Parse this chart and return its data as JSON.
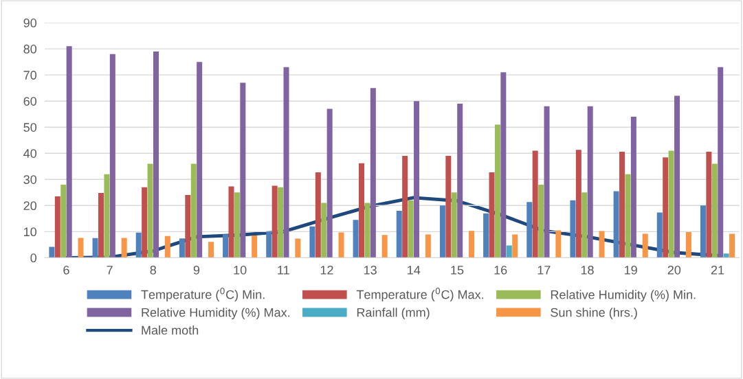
{
  "chart_data": {
    "type": "bar",
    "categories": [
      "6",
      "7",
      "8",
      "9",
      "10",
      "11",
      "12",
      "13",
      "14",
      "15",
      "16",
      "17",
      "18",
      "19",
      "20",
      "21"
    ],
    "series": [
      {
        "name": "Temperature ($^{0}$C) Min.",
        "color": "#4f81bd",
        "values": [
          4.2,
          7.5,
          9.6,
          7.4,
          9,
          10,
          12,
          14.5,
          18,
          20,
          17,
          21.3,
          22,
          25.5,
          17.3,
          20
        ]
      },
      {
        "name": "Temperature ($^{0}$C) Max.",
        "color": "#c0504d",
        "values": [
          23.5,
          24.8,
          27,
          24,
          27.3,
          27.6,
          32.7,
          36.2,
          39,
          39,
          32.7,
          41,
          41.3,
          40.6,
          38.4,
          40.6
        ]
      },
      {
        "name": "Relative Humidity (%) Min.",
        "color": "#9bbb59",
        "values": [
          28,
          32,
          36,
          36,
          25,
          27,
          21,
          21,
          22,
          25,
          51,
          28,
          25,
          32,
          41,
          36
        ]
      },
      {
        "name": "Relative Humidity (%) Max.",
        "color": "#8064a2",
        "values": [
          81,
          78,
          79,
          75,
          67,
          73,
          57,
          65,
          60,
          59,
          71,
          58,
          58,
          54,
          62,
          73
        ]
      },
      {
        "name": "Rainfall (mm)",
        "color": "#4bacc6",
        "values": [
          0,
          0,
          0,
          0,
          0,
          0,
          0,
          0,
          0,
          0,
          4.7,
          0,
          0,
          0,
          0,
          1.6
        ]
      },
      {
        "name": "Sun shine (hrs.)",
        "color": "#f79646",
        "values": [
          7.6,
          7.6,
          8.3,
          6.1,
          8.5,
          7.3,
          9.7,
          8.7,
          8.9,
          10.3,
          8.9,
          10.5,
          10.2,
          9.2,
          9.8,
          9.2
        ]
      },
      {
        "name": "Male moth",
        "type": "line",
        "color": "#1f497d",
        "values": [
          0,
          0.2,
          2.6,
          8,
          8.7,
          10,
          15,
          19.7,
          23,
          21.8,
          16.5,
          10.3,
          8,
          5,
          2,
          0.8
        ]
      }
    ],
    "ylim": [
      0,
      90
    ],
    "yticks": [
      0,
      10,
      20,
      30,
      40,
      50,
      60,
      70,
      80,
      90
    ],
    "grid": "y",
    "legend": "bottom"
  }
}
